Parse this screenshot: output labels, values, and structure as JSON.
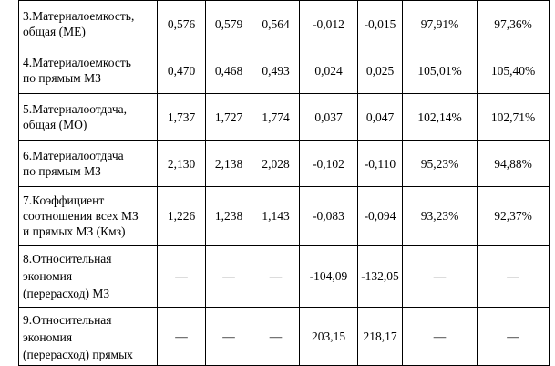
{
  "table": {
    "rows": [
      {
        "label_lines": [
          "3.Материалоемкость,",
          "общая (МЕ)"
        ],
        "cells": [
          "0,576",
          "0,579",
          "0,564",
          "-0,012",
          "-0,015",
          "97,91%",
          "97,36%"
        ]
      },
      {
        "label_lines": [
          "4.Материалоемкость",
          "по прямым МЗ"
        ],
        "cells": [
          "0,470",
          "0,468",
          "0,493",
          "0,024",
          "0,025",
          "105,01%",
          "105,40%"
        ]
      },
      {
        "label_lines": [
          "5.Материалоотдача,",
          "общая (МО)"
        ],
        "cells": [
          "1,737",
          "1,727",
          "1,774",
          "0,037",
          "0,047",
          "102,14%",
          "102,71%"
        ]
      },
      {
        "label_lines": [
          "6.Материалоотдача",
          "по прямым МЗ"
        ],
        "cells": [
          "2,130",
          "2,138",
          "2,028",
          "-0,102",
          "-0,110",
          "95,23%",
          "94,88%"
        ]
      },
      {
        "label_lines": [
          "7.Коэффициент",
          "соотношения всех МЗ",
          "и прямых МЗ (Кмз)"
        ],
        "cells": [
          "1,226",
          "1,238",
          "1,143",
          "-0,083",
          "-0,094",
          "93,23%",
          "92,37%"
        ]
      },
      {
        "label_lines": [
          "8.Относительная",
          "экономия",
          "(перерасход) МЗ"
        ],
        "cells": [
          "—",
          "—",
          "—",
          "-104,09",
          "-132,05",
          "—",
          "—"
        ]
      },
      {
        "label_lines": [
          "9.Относительная",
          "экономия",
          "(перерасход) прямых"
        ],
        "cells": [
          "—",
          "—",
          "—",
          "203,15",
          "218,17",
          "—",
          "—"
        ]
      }
    ]
  }
}
